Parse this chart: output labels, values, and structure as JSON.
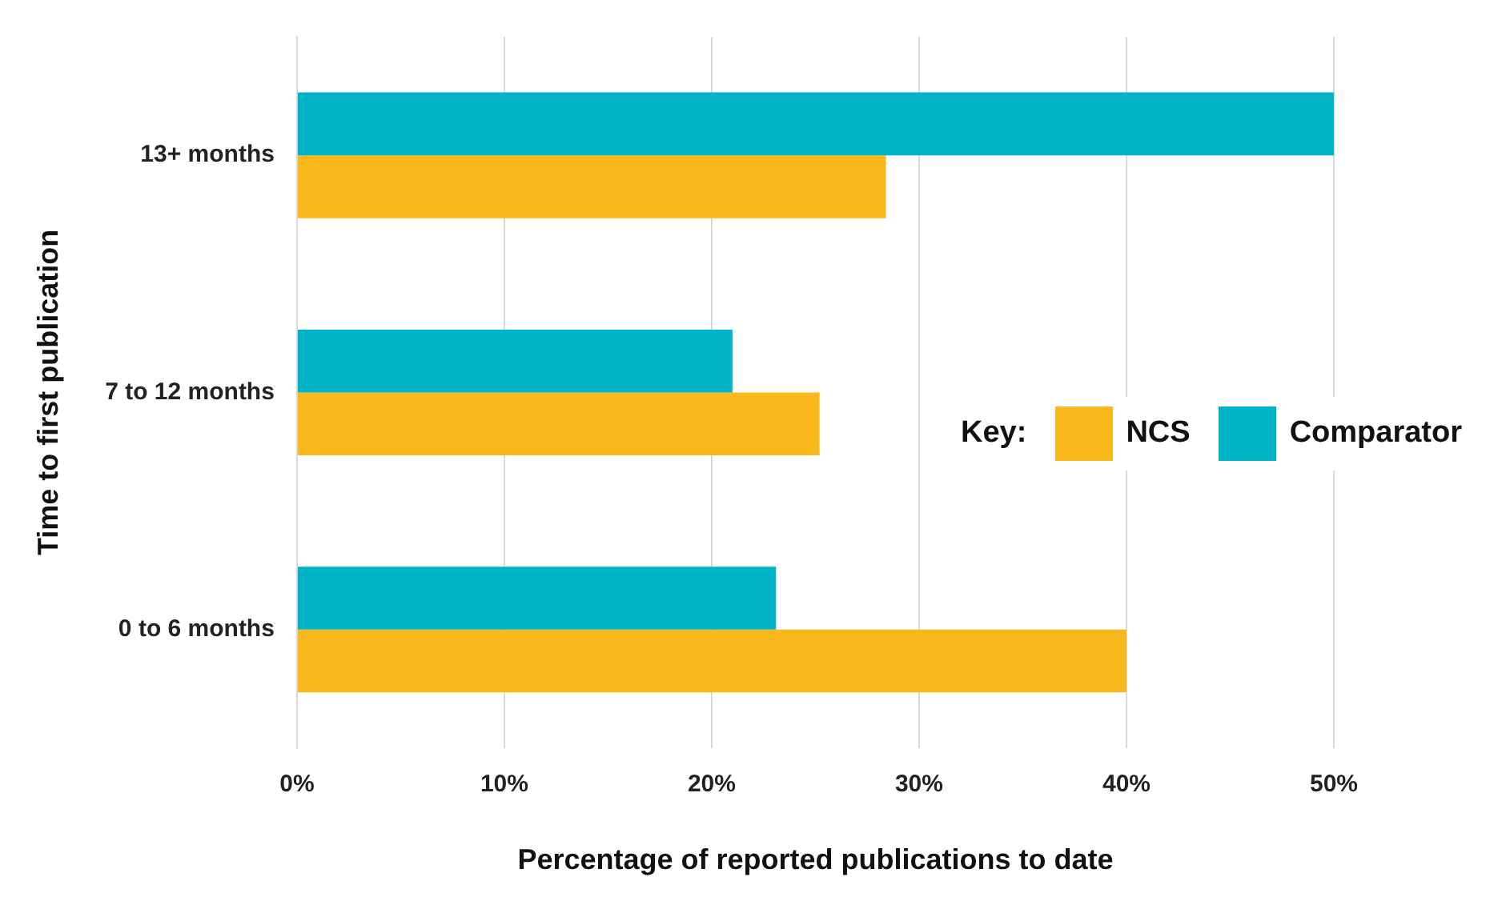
{
  "chart_data": {
    "type": "bar",
    "orientation": "horizontal",
    "xlabel": "Percentage of reported publications to date",
    "ylabel": "Time to first publication",
    "categories": [
      "13+ months",
      "7 to 12 months",
      "0 to 6 months"
    ],
    "series": [
      {
        "name": "Comparator",
        "color": "#00b4c8",
        "values": [
          50,
          21.0,
          23.1
        ]
      },
      {
        "name": "NCS",
        "color": "#f9b81b",
        "values": [
          28.4,
          25.2,
          40.0
        ]
      }
    ],
    "xlim": [
      0,
      50
    ],
    "xticks": [
      {
        "value": 0,
        "label": "0%"
      },
      {
        "value": 10,
        "label": "10%"
      },
      {
        "value": 20,
        "label": "20%"
      },
      {
        "value": 30,
        "label": "30%"
      },
      {
        "value": 40,
        "label": "40%"
      },
      {
        "value": 50,
        "label": "50%"
      }
    ],
    "grid": "x",
    "legend": "right",
    "legend_title": "Key:"
  }
}
